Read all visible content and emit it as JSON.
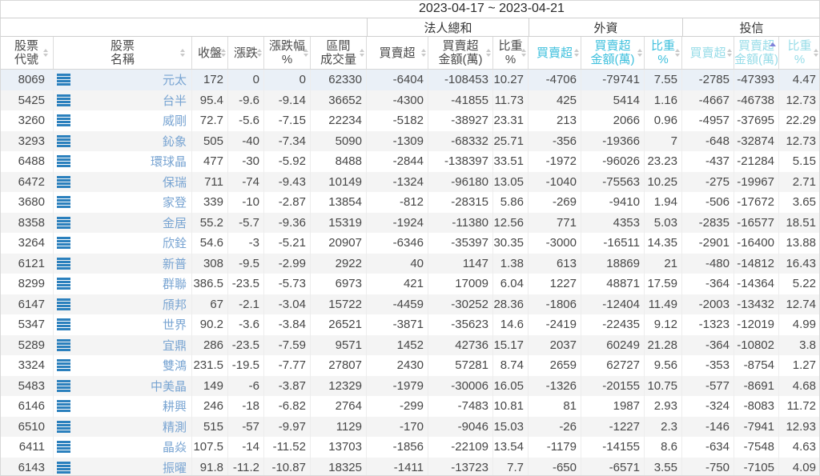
{
  "header": {
    "date_range": "2023-04-17 ~ 2023-04-21"
  },
  "groups": [
    {
      "label": "法人總和"
    },
    {
      "label": "外資"
    },
    {
      "label": "投信"
    }
  ],
  "columns": [
    {
      "id": "code",
      "label": "股票\n代號"
    },
    {
      "id": "name",
      "label": "股票\n名稱"
    },
    {
      "id": "close",
      "label": "收盤"
    },
    {
      "id": "chg",
      "label": "漲跌"
    },
    {
      "id": "chg_pct",
      "label": "漲跌幅\n%"
    },
    {
      "id": "vol",
      "label": "區間\n成交量"
    },
    {
      "id": "inst_net",
      "label": "買賣超"
    },
    {
      "id": "inst_amt",
      "label": "買賣超\n金額(萬)"
    },
    {
      "id": "inst_w",
      "label": "比重\n%"
    },
    {
      "id": "for_net",
      "label": "買賣超"
    },
    {
      "id": "for_amt",
      "label": "買賣超\n金額(萬)"
    },
    {
      "id": "for_w",
      "label": "比重\n%"
    },
    {
      "id": "tru_net",
      "label": "買賣超"
    },
    {
      "id": "tru_amt",
      "label": "買賣超\n金額(萬)"
    },
    {
      "id": "tru_w",
      "label": "比重\n%"
    }
  ],
  "sort": {
    "active_column": "投信 買賣超金額(萬)",
    "direction": "ascending"
  },
  "icons": {
    "row_action": "list-icon",
    "header_sort": "sort-arrows-icon",
    "active_sort": "sort-up-icon"
  },
  "colors": {
    "negative": "#3aa03a",
    "positive": "#e05d5d",
    "neutral": "#474747",
    "stock_name": "#78a4d2",
    "institutional_header": "#4a4a4a",
    "foreign_header": "#3ec0dd",
    "trust_header": "#97dce8",
    "row_icon": "#2b80bd",
    "active_sort_arrow": "#8080d9",
    "stripe": "#f4f4f4"
  },
  "rows": [
    [
      "8069",
      "元太",
      "172",
      "0",
      "0",
      "62330",
      "-6404",
      "-108453",
      "10.27",
      "-4706",
      "-79741",
      "7.55",
      "-2785",
      "-47393",
      "4.47"
    ],
    [
      "5425",
      "台半",
      "95.4",
      "-9.6",
      "-9.14",
      "36652",
      "-4300",
      "-41855",
      "11.73",
      "425",
      "5414",
      "1.16",
      "-4667",
      "-46738",
      "12.73"
    ],
    [
      "3260",
      "威剛",
      "72.7",
      "-5.6",
      "-7.15",
      "22234",
      "-5182",
      "-38927",
      "23.31",
      "213",
      "2066",
      "0.96",
      "-4957",
      "-37695",
      "22.29"
    ],
    [
      "3293",
      "鈊象",
      "505",
      "-40",
      "-7.34",
      "5090",
      "-1309",
      "-68332",
      "25.71",
      "-356",
      "-19366",
      "7",
      "-648",
      "-32874",
      "12.73"
    ],
    [
      "6488",
      "環球晶",
      "477",
      "-30",
      "-5.92",
      "8488",
      "-2844",
      "-138397",
      "33.51",
      "-1972",
      "-96026",
      "23.23",
      "-437",
      "-21284",
      "5.15"
    ],
    [
      "6472",
      "保瑞",
      "711",
      "-74",
      "-9.43",
      "10149",
      "-1324",
      "-96180",
      "13.05",
      "-1040",
      "-75563",
      "10.25",
      "-275",
      "-19967",
      "2.71"
    ],
    [
      "3680",
      "家登",
      "339",
      "-10",
      "-2.87",
      "13854",
      "-812",
      "-28315",
      "5.86",
      "-269",
      "-9410",
      "1.94",
      "-506",
      "-17672",
      "3.65"
    ],
    [
      "8358",
      "金居",
      "55.2",
      "-5.7",
      "-9.36",
      "15319",
      "-1924",
      "-11380",
      "12.56",
      "771",
      "4353",
      "5.03",
      "-2835",
      "-16577",
      "18.51"
    ],
    [
      "3264",
      "欣銓",
      "54.6",
      "-3",
      "-5.21",
      "20907",
      "-6346",
      "-35397",
      "30.35",
      "-3000",
      "-16511",
      "14.35",
      "-2901",
      "-16400",
      "13.88"
    ],
    [
      "6121",
      "新普",
      "308",
      "-9.5",
      "-2.99",
      "2922",
      "40",
      "1147",
      "1.38",
      "613",
      "18869",
      "21",
      "-480",
      "-14812",
      "16.43"
    ],
    [
      "8299",
      "群聯",
      "386.5",
      "-23.5",
      "-5.73",
      "6973",
      "421",
      "17009",
      "6.04",
      "1227",
      "48871",
      "17.59",
      "-364",
      "-14364",
      "5.22"
    ],
    [
      "6147",
      "頎邦",
      "67",
      "-2.1",
      "-3.04",
      "15722",
      "-4459",
      "-30252",
      "28.36",
      "-1806",
      "-12404",
      "11.49",
      "-2003",
      "-13432",
      "12.74"
    ],
    [
      "5347",
      "世界",
      "90.2",
      "-3.6",
      "-3.84",
      "26521",
      "-3871",
      "-35623",
      "14.6",
      "-2419",
      "-22435",
      "9.12",
      "-1323",
      "-12019",
      "4.99"
    ],
    [
      "5289",
      "宜鼎",
      "286",
      "-23.5",
      "-7.59",
      "9571",
      "1452",
      "42736",
      "15.17",
      "2037",
      "60249",
      "21.28",
      "-364",
      "-10802",
      "3.8"
    ],
    [
      "3324",
      "雙鴻",
      "231.5",
      "-19.5",
      "-7.77",
      "27807",
      "2430",
      "57281",
      "8.74",
      "2659",
      "62727",
      "9.56",
      "-353",
      "-8754",
      "1.27"
    ],
    [
      "5483",
      "中美晶",
      "149",
      "-6",
      "-3.87",
      "12329",
      "-1979",
      "-30006",
      "16.05",
      "-1326",
      "-20155",
      "10.75",
      "-577",
      "-8691",
      "4.68"
    ],
    [
      "6146",
      "耕興",
      "246",
      "-18",
      "-6.82",
      "2764",
      "-299",
      "-7483",
      "10.81",
      "81",
      "1987",
      "2.93",
      "-324",
      "-8083",
      "11.72"
    ],
    [
      "6510",
      "精測",
      "515",
      "-57",
      "-9.97",
      "1129",
      "-170",
      "-9046",
      "15.03",
      "-26",
      "-1227",
      "2.3",
      "-146",
      "-7941",
      "12.93"
    ],
    [
      "6411",
      "晶焱",
      "107.5",
      "-14",
      "-11.52",
      "13703",
      "-1856",
      "-22109",
      "13.54",
      "-1179",
      "-14155",
      "8.6",
      "-634",
      "-7548",
      "4.63"
    ],
    [
      "6143",
      "振曜",
      "91.8",
      "-11.2",
      "-10.87",
      "18325",
      "-1411",
      "-13723",
      "7.7",
      "-650",
      "-6571",
      "3.55",
      "-750",
      "-7105",
      "4.09"
    ]
  ]
}
